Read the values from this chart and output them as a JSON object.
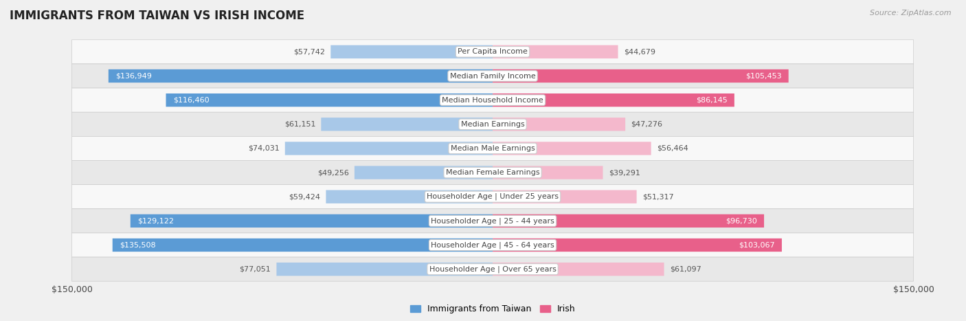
{
  "title": "IMMIGRANTS FROM TAIWAN VS IRISH INCOME",
  "source": "Source: ZipAtlas.com",
  "categories": [
    "Per Capita Income",
    "Median Family Income",
    "Median Household Income",
    "Median Earnings",
    "Median Male Earnings",
    "Median Female Earnings",
    "Householder Age | Under 25 years",
    "Householder Age | 25 - 44 years",
    "Householder Age | 45 - 64 years",
    "Householder Age | Over 65 years"
  ],
  "taiwan_values": [
    57742,
    136949,
    116460,
    61151,
    74031,
    49256,
    59424,
    129122,
    135508,
    77051
  ],
  "irish_values": [
    44679,
    105453,
    86145,
    47276,
    56464,
    39291,
    51317,
    96730,
    103067,
    61097
  ],
  "taiwan_color_light": "#a8c8e8",
  "taiwan_color_dark": "#5b9bd5",
  "irish_color_light": "#f4b8cc",
  "irish_color_dark": "#e8608a",
  "taiwan_label": "Immigrants from Taiwan",
  "irish_label": "Irish",
  "xlim": 150000,
  "xlabel_left": "$150,000",
  "xlabel_right": "$150,000",
  "background_color": "#f0f0f0",
  "row_bg_colors": [
    "#f8f8f8",
    "#e8e8e8"
  ],
  "title_fontsize": 12,
  "label_fontsize": 8,
  "value_fontsize": 8,
  "source_fontsize": 8,
  "dark_threshold": 80000
}
